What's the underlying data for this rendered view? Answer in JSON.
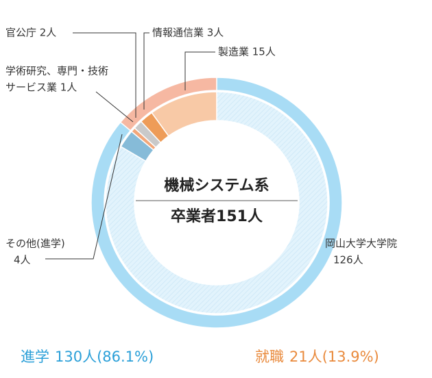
{
  "chart_data": {
    "type": "donut",
    "title": "機械システム系",
    "subtitle": "卒業者151人",
    "outer": [
      {
        "name": "進学",
        "value": 130,
        "value_label": "130人(86.1%)",
        "color": "#a8dcf5",
        "text_color": "#2a9fd8"
      },
      {
        "name": "就職",
        "value": 21,
        "value_label": "21人(13.9%)",
        "color": "#f6b8a2",
        "text_color": "#e98a3c"
      }
    ],
    "inner": [
      {
        "label_lines": [
          "岡山大学大学院",
          "126人"
        ],
        "value": 126,
        "color": "#dff2fc",
        "hatch": true
      },
      {
        "label_lines": [
          "その他(進学)",
          "4人"
        ],
        "value": 4,
        "color": "#86bbd8"
      },
      {
        "label_lines": [
          "学術研究、専門・技術",
          "サービス業 1人"
        ],
        "value": 1,
        "color": "#f2a77a"
      },
      {
        "label_lines": [
          "官公庁 2人"
        ],
        "value": 2,
        "color": "#c9c9c9"
      },
      {
        "label_lines": [
          "情報通信業 3人"
        ],
        "value": 3,
        "color": "#ee9c58"
      },
      {
        "label_lines": [
          "製造業 15人"
        ],
        "value": 15,
        "color": "#f8c9a6"
      }
    ]
  }
}
